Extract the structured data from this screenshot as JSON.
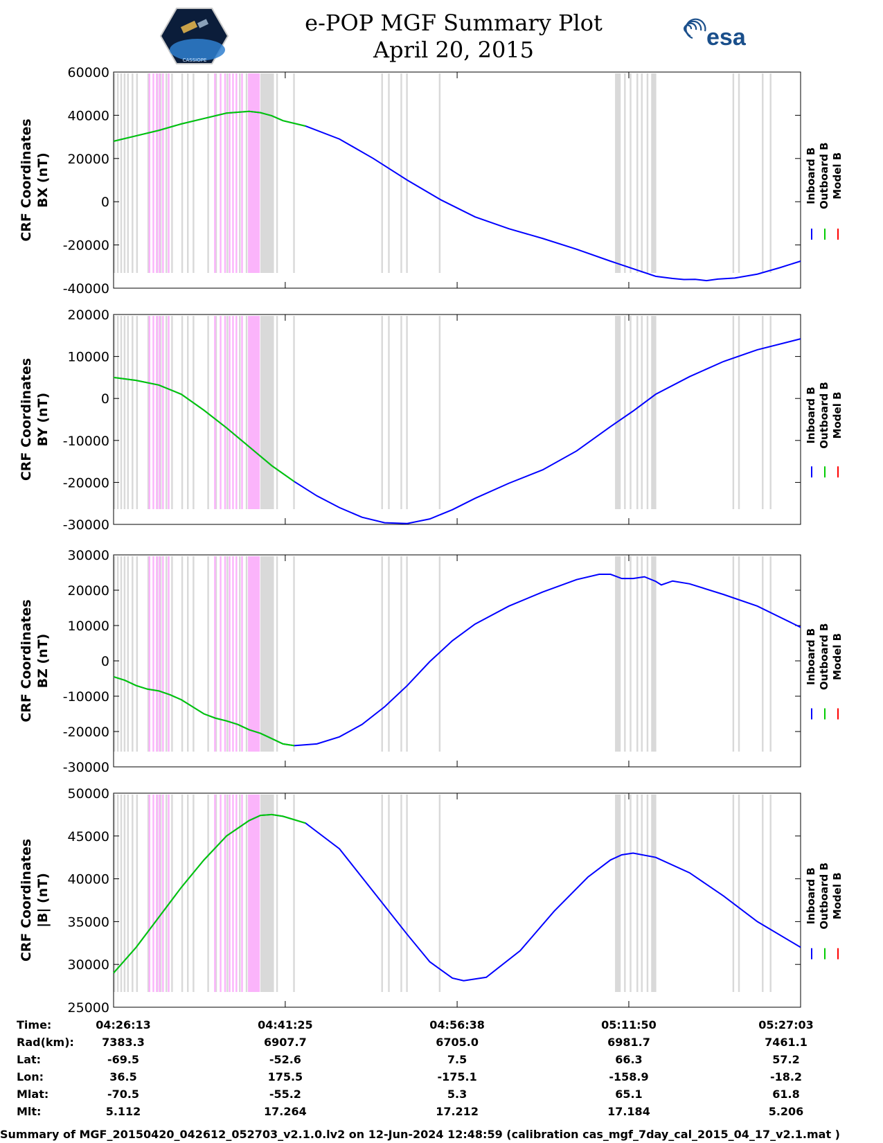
{
  "header": {
    "title_line1": "e-POP MGF Summary Plot",
    "title_line2": "April 20, 2015",
    "left_logo_text": "CASSIOPE",
    "right_logo_text": "esa"
  },
  "colors": {
    "inboard": "#0000ff",
    "outboard": "#00cc00",
    "model": "#ff0000",
    "gray_band": "#d9d9d9",
    "magenta_band": "#fbb4fb"
  },
  "legend": [
    "Inboard B",
    "Outboard B",
    "Model B"
  ],
  "time_ticks": [
    "04:26:13",
    "04:41:25",
    "04:56:38",
    "05:11:50",
    "05:27:03"
  ],
  "ephemeris": [
    {
      "label": "Time:",
      "values": [
        "04:26:13",
        "04:41:25",
        "04:56:38",
        "05:11:50",
        "05:27:03"
      ]
    },
    {
      "label": "Rad(km):",
      "values": [
        "7383.3",
        "6907.7",
        "6705.0",
        "6981.7",
        "7461.1"
      ]
    },
    {
      "label": "Lat:",
      "values": [
        "-69.5",
        "-52.6",
        "7.5",
        "66.3",
        "57.2"
      ]
    },
    {
      "label": "Lon:",
      "values": [
        "36.5",
        "175.5",
        "-175.1",
        "-158.9",
        "-18.2"
      ]
    },
    {
      "label": "Mlat:",
      "values": [
        "-70.5",
        "-55.2",
        "5.3",
        "65.1",
        "61.8"
      ]
    },
    {
      "label": "Mlt:",
      "values": [
        "5.112",
        "17.264",
        "17.212",
        "17.184",
        "5.206"
      ]
    }
  ],
  "footer": "Summary of MGF_20150420_042612_052703_v2.1.0.lv2 on 12-Jun-2024 12:48:59 (calibration cas_mgf_7day_cal_2015_04_17_v2.1.mat )",
  "chart_data": {
    "type": "line",
    "x_unit": "minutes since 04:26:13",
    "xlim": [
      0,
      60.83
    ],
    "tick_minutes": [
      0,
      15.2,
      30.42,
      45.62,
      60.83
    ],
    "gray_bands": [
      [
        0,
        0.15
      ],
      [
        0.3,
        0.45
      ],
      [
        0.6,
        0.75
      ],
      [
        0.9,
        1.05
      ],
      [
        1.2,
        1.35
      ],
      [
        1.6,
        1.75
      ],
      [
        2.0,
        2.15
      ],
      [
        3.0,
        3.15
      ],
      [
        3.8,
        3.95
      ],
      [
        4.1,
        4.25
      ],
      [
        4.6,
        4.75
      ],
      [
        5.1,
        5.25
      ],
      [
        6.0,
        6.15
      ],
      [
        6.5,
        6.65
      ],
      [
        7.0,
        7.15
      ],
      [
        8.3,
        8.45
      ],
      [
        9.0,
        9.15
      ],
      [
        10.0,
        10.15
      ],
      [
        11.1,
        11.25
      ],
      [
        11.7,
        11.85
      ],
      [
        13.0,
        14.2
      ],
      [
        14.4,
        14.55
      ],
      [
        15.9,
        16.05
      ],
      [
        23.7,
        23.85
      ],
      [
        24.3,
        24.45
      ],
      [
        25.4,
        25.55
      ],
      [
        25.9,
        26.05
      ],
      [
        28.8,
        28.95
      ],
      [
        44.4,
        44.9
      ],
      [
        45.2,
        45.35
      ],
      [
        45.7,
        45.85
      ],
      [
        46.3,
        46.45
      ],
      [
        46.7,
        46.85
      ],
      [
        47.2,
        47.35
      ],
      [
        47.6,
        48.05
      ],
      [
        54.8,
        54.95
      ],
      [
        55.3,
        55.45
      ],
      [
        57.4,
        57.55
      ],
      [
        58.1,
        58.25
      ]
    ],
    "magenta_bands": [
      [
        3.1,
        3.25
      ],
      [
        3.45,
        3.6
      ],
      [
        3.75,
        3.9
      ],
      [
        4.0,
        4.15
      ],
      [
        4.3,
        4.45
      ],
      [
        4.8,
        4.95
      ],
      [
        8.9,
        9.05
      ],
      [
        9.4,
        9.55
      ],
      [
        9.8,
        9.95
      ],
      [
        10.2,
        10.35
      ],
      [
        10.5,
        10.65
      ],
      [
        10.8,
        10.95
      ],
      [
        11.3,
        11.45
      ],
      [
        11.9,
        12.95
      ]
    ],
    "panels": [
      {
        "ylabel_line1": "CRF Coordinates",
        "ylabel_line2": "BX (nT)",
        "ylim": [
          -40000,
          60000
        ],
        "yticks": [
          -40000,
          -20000,
          0,
          20000,
          40000,
          60000
        ],
        "outboard_end": 17.2,
        "points": [
          [
            0,
            28000
          ],
          [
            2,
            30500
          ],
          [
            4,
            33000
          ],
          [
            6,
            36000
          ],
          [
            8,
            38500
          ],
          [
            10,
            41000
          ],
          [
            12,
            41800
          ],
          [
            13,
            41200
          ],
          [
            14,
            39800
          ],
          [
            15,
            37500
          ],
          [
            17,
            35000
          ],
          [
            20,
            29000
          ],
          [
            23,
            20000
          ],
          [
            26,
            10000
          ],
          [
            29,
            800
          ],
          [
            32,
            -7000
          ],
          [
            35,
            -12500
          ],
          [
            38,
            -17000
          ],
          [
            41,
            -22000
          ],
          [
            44,
            -27500
          ],
          [
            46,
            -31000
          ],
          [
            48,
            -34500
          ],
          [
            49.5,
            -35500
          ],
          [
            50.5,
            -36000
          ],
          [
            51.5,
            -35900
          ],
          [
            52.5,
            -36500
          ],
          [
            53.5,
            -35800
          ],
          [
            55,
            -35300
          ],
          [
            57,
            -33500
          ],
          [
            59,
            -30500
          ],
          [
            60.83,
            -27500
          ]
        ]
      },
      {
        "ylabel_line1": "CRF Coordinates",
        "ylabel_line2": "BY (nT)",
        "ylim": [
          -30000,
          20000
        ],
        "yticks": [
          -30000,
          -20000,
          -10000,
          0,
          10000,
          20000
        ],
        "outboard_end": 17.2,
        "points": [
          [
            0,
            5000
          ],
          [
            2,
            4300
          ],
          [
            4,
            3200
          ],
          [
            6,
            1000
          ],
          [
            8,
            -2800
          ],
          [
            10,
            -7000
          ],
          [
            12,
            -11500
          ],
          [
            14,
            -16000
          ],
          [
            16,
            -19800
          ],
          [
            18,
            -23200
          ],
          [
            20,
            -26000
          ],
          [
            22,
            -28300
          ],
          [
            24,
            -29600
          ],
          [
            26,
            -29800
          ],
          [
            28,
            -28700
          ],
          [
            30,
            -26500
          ],
          [
            32,
            -23800
          ],
          [
            35,
            -20200
          ],
          [
            38,
            -17000
          ],
          [
            41,
            -12500
          ],
          [
            44,
            -6700
          ],
          [
            46,
            -3000
          ],
          [
            48,
            1000
          ],
          [
            51,
            5200
          ],
          [
            54,
            8800
          ],
          [
            57,
            11600
          ],
          [
            60.83,
            14200
          ]
        ]
      },
      {
        "ylabel_line1": "CRF Coordinates",
        "ylabel_line2": "BZ (nT)",
        "ylim": [
          -30000,
          30000
        ],
        "yticks": [
          -30000,
          -20000,
          -10000,
          0,
          10000,
          20000,
          30000
        ],
        "outboard_end": 17.2,
        "points": [
          [
            0,
            -4500
          ],
          [
            1,
            -5500
          ],
          [
            2,
            -7000
          ],
          [
            3,
            -8000
          ],
          [
            4,
            -8500
          ],
          [
            5,
            -9600
          ],
          [
            6,
            -11000
          ],
          [
            7,
            -13000
          ],
          [
            8,
            -15000
          ],
          [
            9,
            -16200
          ],
          [
            10,
            -17000
          ],
          [
            11,
            -18000
          ],
          [
            12,
            -19500
          ],
          [
            13,
            -20500
          ],
          [
            14,
            -22000
          ],
          [
            15,
            -23500
          ],
          [
            16,
            -24000
          ],
          [
            18,
            -23500
          ],
          [
            20,
            -21500
          ],
          [
            22,
            -18000
          ],
          [
            24,
            -13000
          ],
          [
            26,
            -7000
          ],
          [
            28,
            -200
          ],
          [
            30,
            5700
          ],
          [
            32,
            10400
          ],
          [
            35,
            15500
          ],
          [
            38,
            19500
          ],
          [
            41,
            23000
          ],
          [
            43,
            24500
          ],
          [
            44,
            24500
          ],
          [
            45,
            23300
          ],
          [
            46,
            23300
          ],
          [
            47,
            23800
          ],
          [
            48,
            22500
          ],
          [
            48.5,
            21500
          ],
          [
            49.5,
            22600
          ],
          [
            51,
            21800
          ],
          [
            54,
            18800
          ],
          [
            57,
            15500
          ],
          [
            60.83,
            9500
          ]
        ]
      },
      {
        "ylabel_line1": "CRF Coordinates",
        "ylabel_line2": "|B| (nT)",
        "ylim": [
          25000,
          50000
        ],
        "yticks": [
          25000,
          30000,
          35000,
          40000,
          45000,
          50000
        ],
        "outboard_end": 17.2,
        "points": [
          [
            0,
            29000
          ],
          [
            2,
            32000
          ],
          [
            4,
            35500
          ],
          [
            6,
            39000
          ],
          [
            8,
            42200
          ],
          [
            10,
            45000
          ],
          [
            12,
            46800
          ],
          [
            13,
            47400
          ],
          [
            14,
            47500
          ],
          [
            15,
            47300
          ],
          [
            17,
            46500
          ],
          [
            20,
            43500
          ],
          [
            23,
            38500
          ],
          [
            26,
            33500
          ],
          [
            28,
            30300
          ],
          [
            30,
            28400
          ],
          [
            31,
            28100
          ],
          [
            33,
            28500
          ],
          [
            36,
            31600
          ],
          [
            39,
            36200
          ],
          [
            42,
            40200
          ],
          [
            44,
            42200
          ],
          [
            45,
            42800
          ],
          [
            46,
            43000
          ],
          [
            48,
            42500
          ],
          [
            51,
            40700
          ],
          [
            54,
            38000
          ],
          [
            57,
            35000
          ],
          [
            60.83,
            32000
          ]
        ]
      }
    ]
  }
}
